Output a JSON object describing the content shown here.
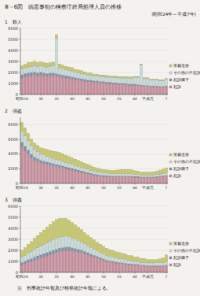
{
  "title": "Ⅲ－6図　凶悪事犯の検察庁終局処理人員の推移",
  "period": "(昭和24年～平成7年)",
  "note": "注　刑事統計年報及び検察統計年報による。",
  "chart_data": [
    {
      "type": "bar",
      "title": "1　殺人",
      "stacked": true,
      "legend": "right",
      "categories": [
        "昭和24",
        null,
        null,
        null,
        null,
        null,
        "30",
        null,
        null,
        null,
        null,
        "35",
        null,
        null,
        null,
        null,
        "40",
        null,
        null,
        null,
        null,
        "45",
        null,
        null,
        null,
        null,
        "50",
        null,
        null,
        null,
        null,
        "55",
        null,
        null,
        null,
        null,
        "60",
        null,
        null,
        null,
        "平成元",
        null,
        null,
        null,
        null,
        null,
        "7"
      ],
      "ylim": [
        0,
        6000
      ],
      "yticks": [
        0,
        1000,
        2000,
        3000,
        4000,
        5000,
        6000
      ],
      "series": [
        {
          "name": "起訴",
          "color": "#c98a9a",
          "values": [
            1500,
            1600,
            1650,
            1700,
            1750,
            1700,
            1750,
            1700,
            1650,
            1700,
            1700,
            1650,
            1600,
            1550,
            1500,
            1450,
            1400,
            1350,
            1300,
            1250,
            1200,
            1150,
            1150,
            1100,
            1100,
            1050,
            1050,
            1000,
            1000,
            950,
            950,
            900,
            900,
            900,
            850,
            850,
            850,
            800,
            800,
            750,
            750,
            700,
            700,
            700,
            650,
            650,
            700
          ]
        },
        {
          "name": "起訴猶予",
          "color": "#7f8fa8",
          "values": [
            300,
            300,
            300,
            280,
            280,
            260,
            260,
            250,
            240,
            240,
            230,
            230,
            220,
            210,
            200,
            200,
            190,
            180,
            170,
            170,
            160,
            150,
            150,
            140,
            140,
            130,
            130,
            120,
            120,
            110,
            110,
            100,
            100,
            100,
            90,
            90,
            90,
            90,
            80,
            80,
            80,
            70,
            70,
            70,
            70,
            70,
            70
          ]
        },
        {
          "name": "その他の不起訴",
          "color": "#c8dcdc",
          "values": [
            500,
            500,
            550,
            550,
            600,
            600,
            600,
            600,
            600,
            600,
            650,
            3200,
            600,
            600,
            550,
            550,
            550,
            500,
            500,
            500,
            500,
            450,
            450,
            450,
            450,
            450,
            450,
            450,
            450,
            500,
            500,
            500,
            500,
            500,
            550,
            550,
            600,
            650,
            1800,
            600,
            600,
            550,
            550,
            550,
            550,
            550,
            600
          ]
        },
        {
          "name": "家裁送致",
          "color": "#c8c860",
          "values": [
            300,
            350,
            400,
            400,
            400,
            350,
            350,
            350,
            350,
            350,
            350,
            350,
            350,
            300,
            300,
            300,
            300,
            250,
            250,
            250,
            200,
            200,
            200,
            150,
            150,
            150,
            150,
            150,
            120,
            120,
            120,
            120,
            120,
            120,
            120,
            100,
            100,
            100,
            100,
            100,
            100,
            80,
            80,
            80,
            80,
            80,
            80
          ]
        }
      ]
    },
    {
      "type": "bar",
      "title": "2　強盗",
      "stacked": true,
      "legend": "right",
      "categories": [
        "昭和24",
        null,
        null,
        null,
        null,
        null,
        "30",
        null,
        null,
        null,
        null,
        "35",
        null,
        null,
        null,
        null,
        "40",
        null,
        null,
        null,
        null,
        "45",
        null,
        null,
        null,
        null,
        "50",
        null,
        null,
        null,
        null,
        "55",
        null,
        null,
        null,
        null,
        "60",
        null,
        null,
        null,
        "平成元",
        null,
        null,
        null,
        null,
        null,
        "7"
      ],
      "ylim": [
        0,
        9000
      ],
      "yticks": [
        0,
        2000,
        4000,
        6000,
        8000
      ],
      "series": [
        {
          "name": "起訴",
          "color": "#c98a9a",
          "values": [
            5000,
            4500,
            4000,
            3500,
            3200,
            3000,
            2800,
            2700,
            2600,
            2500,
            2400,
            2300,
            2200,
            2100,
            2000,
            1900,
            1800,
            1700,
            1600,
            1500,
            1400,
            1300,
            1200,
            1100,
            1050,
            1000,
            950,
            950,
            900,
            900,
            900,
            900,
            900,
            900,
            900,
            900,
            850,
            850,
            800,
            800,
            800,
            800,
            800,
            850,
            900,
            950,
            1000
          ]
        },
        {
          "name": "起訴猶予",
          "color": "#7f8fa8",
          "values": [
            600,
            550,
            500,
            450,
            400,
            380,
            350,
            330,
            320,
            300,
            290,
            280,
            270,
            260,
            250,
            240,
            230,
            220,
            210,
            200,
            190,
            180,
            170,
            160,
            150,
            140,
            130,
            120,
            120,
            110,
            110,
            110,
            100,
            100,
            100,
            100,
            100,
            100,
            90,
            90,
            90,
            90,
            90,
            90,
            90,
            100,
            100
          ]
        },
        {
          "name": "その他の不起訴",
          "color": "#c8dcdc",
          "values": [
            1500,
            1400,
            1300,
            1200,
            1100,
            1000,
            900,
            850,
            800,
            750,
            700,
            680,
            650,
            620,
            600,
            580,
            560,
            540,
            520,
            500,
            480,
            460,
            440,
            420,
            400,
            380,
            360,
            340,
            320,
            300,
            300,
            300,
            300,
            300,
            300,
            300,
            280,
            280,
            260,
            260,
            250,
            250,
            250,
            260,
            280,
            300,
            320
          ]
        },
        {
          "name": "家裁送致",
          "color": "#c8c860",
          "values": [
            1200,
            1100,
            1000,
            900,
            800,
            800,
            800,
            850,
            900,
            950,
            1000,
            1050,
            1100,
            1050,
            1000,
            950,
            900,
            850,
            800,
            750,
            700,
            650,
            600,
            550,
            500,
            450,
            450,
            450,
            450,
            450,
            500,
            550,
            600,
            600,
            600,
            550,
            500,
            450,
            400,
            400,
            400,
            400,
            450,
            500,
            550,
            600,
            700
          ]
        }
      ]
    },
    {
      "type": "bar",
      "title": "3　強姦",
      "stacked": true,
      "legend": "right",
      "categories": [
        "昭和24",
        null,
        null,
        null,
        null,
        null,
        "30",
        null,
        null,
        null,
        null,
        "35",
        null,
        null,
        null,
        null,
        "40",
        null,
        null,
        null,
        null,
        "45",
        null,
        null,
        null,
        null,
        "50",
        null,
        null,
        null,
        null,
        "55",
        null,
        null,
        null,
        null,
        "60",
        null,
        null,
        null,
        "平成元",
        null,
        null,
        null,
        null,
        null,
        "7"
      ],
      "ylim": [
        0,
        6000
      ],
      "yticks": [
        0,
        1000,
        2000,
        3000,
        4000,
        5000,
        6000
      ],
      "series": [
        {
          "name": "起訴",
          "color": "#c98a9a",
          "values": [
            700,
            800,
            900,
            1000,
            1100,
            1200,
            1300,
            1400,
            1500,
            1600,
            1700,
            1800,
            1900,
            1950,
            2000,
            2000,
            1950,
            1900,
            1850,
            1800,
            1700,
            1600,
            1500,
            1400,
            1300,
            1200,
            1100,
            1000,
            950,
            900,
            850,
            800,
            800,
            750,
            700,
            700,
            650,
            650,
            600,
            600,
            550,
            550,
            550,
            550,
            550,
            550,
            600
          ]
        },
        {
          "name": "起訴猶予",
          "color": "#7f8fa8",
          "values": [
            200,
            200,
            250,
            250,
            300,
            300,
            300,
            300,
            300,
            300,
            300,
            300,
            300,
            300,
            300,
            300,
            280,
            260,
            240,
            220,
            200,
            180,
            160,
            150,
            140,
            130,
            120,
            110,
            100,
            100,
            90,
            90,
            80,
            80,
            80,
            70,
            70,
            70,
            60,
            60,
            60,
            60,
            60,
            60,
            60,
            60,
            60
          ]
        },
        {
          "name": "その他の不起訴",
          "color": "#c8dcdc",
          "values": [
            500,
            550,
            600,
            650,
            700,
            750,
            800,
            850,
            900,
            950,
            1000,
            1000,
            1000,
            1000,
            1000,
            950,
            900,
            850,
            800,
            750,
            700,
            650,
            600,
            550,
            500,
            480,
            460,
            440,
            420,
            400,
            380,
            360,
            340,
            320,
            300,
            300,
            280,
            280,
            260,
            260,
            250,
            250,
            250,
            260,
            280,
            300,
            320
          ]
        },
        {
          "name": "家裁送致",
          "color": "#c8c860",
          "values": [
            600,
            700,
            800,
            900,
            1000,
            1100,
            1200,
            1300,
            1400,
            1500,
            1600,
            1700,
            1700,
            1650,
            1600,
            1500,
            1400,
            1300,
            1200,
            1100,
            1000,
            950,
            900,
            850,
            800,
            750,
            700,
            650,
            600,
            600,
            550,
            550,
            500,
            500,
            450,
            450,
            400,
            400,
            350,
            350,
            300,
            300,
            300,
            300,
            350,
            400,
            600
          ]
        }
      ]
    }
  ]
}
